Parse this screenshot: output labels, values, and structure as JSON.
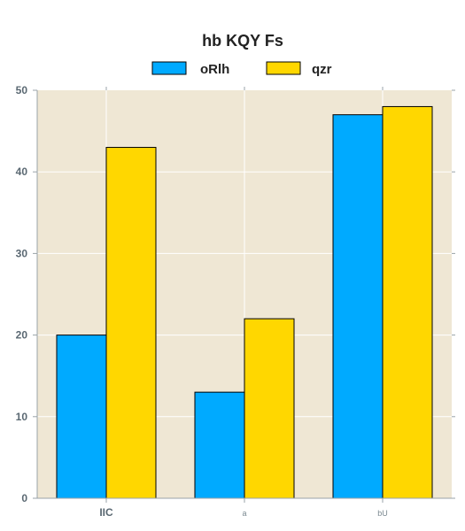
{
  "chart_data": {
    "type": "bar",
    "title": "hb KQY Fs",
    "categories": [
      "IIC",
      "a",
      "bU"
    ],
    "series": [
      {
        "name": "oRlh",
        "color": "#00aaff",
        "values": [
          20,
          13,
          47
        ]
      },
      {
        "name": "qzr",
        "color": "#ffd700",
        "values": [
          43,
          22,
          48
        ]
      }
    ],
    "xlabel": "",
    "ylabel": "",
    "ylim": [
      0,
      50
    ],
    "yticks": [
      0,
      10,
      20,
      30,
      40,
      50
    ],
    "grid": true,
    "legend_position": "top-center",
    "plot_background": "#efe7d4"
  }
}
